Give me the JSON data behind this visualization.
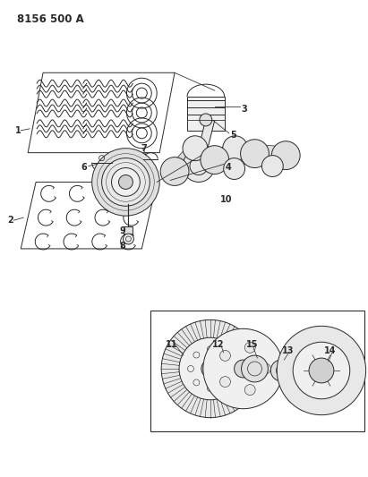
{
  "title": "8156 500 A",
  "bg_color": "#ffffff",
  "lc": "#2a2a2a",
  "lw": 0.7,
  "title_fontsize": 8.5,
  "label_fontsize": 7.0,
  "figsize": [
    4.11,
    5.33
  ],
  "dpi": 100
}
